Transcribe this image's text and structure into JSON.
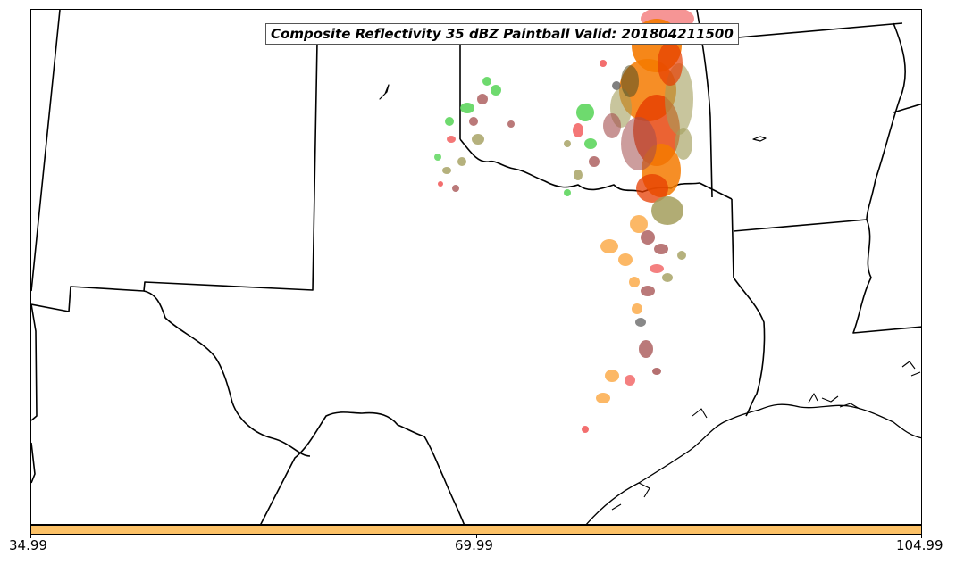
{
  "title": "Composite Reflectivity 35 dBZ Paintball Valid: 201804211500",
  "colorbar": {
    "color": "#fcc166",
    "ticks": [
      "34.99",
      "69.99",
      "104.99"
    ]
  },
  "colors": {
    "orange": "#f57a00",
    "red_orange": "#e63c00",
    "red": "#f04a4a",
    "pink": "#f58a8a",
    "light_orange": "#fcb055",
    "olive": "#a39e5c",
    "green": "#55d455",
    "maroon": "#a34c4c",
    "dark_olive": "#4f4c22",
    "gray": "#606060"
  }
}
